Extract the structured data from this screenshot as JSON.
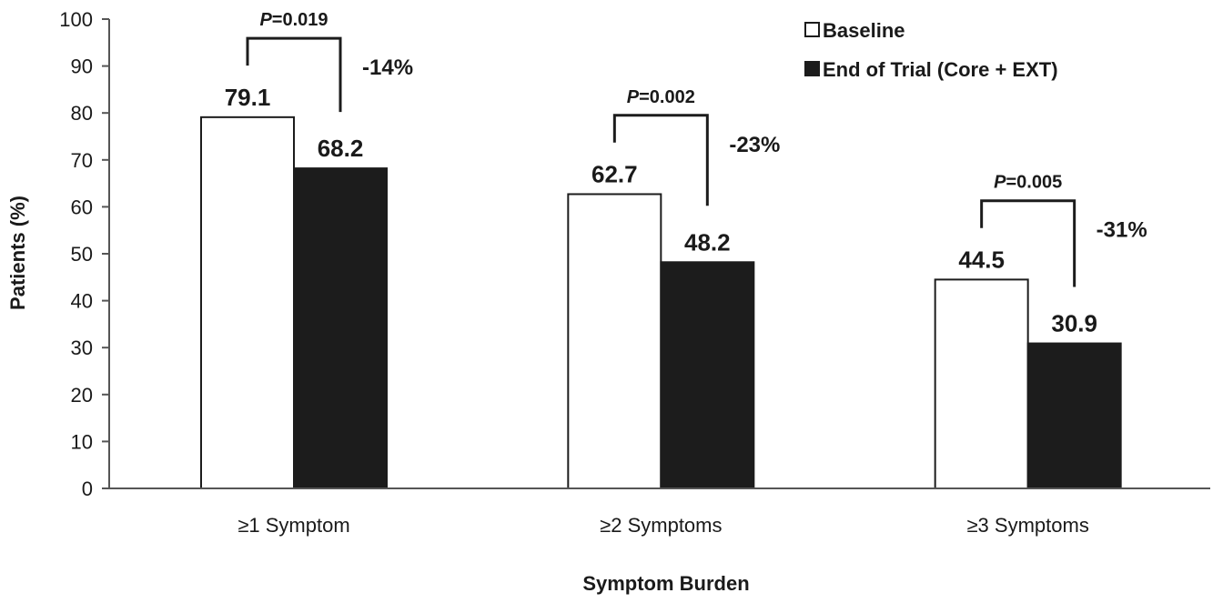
{
  "chart_data": {
    "type": "bar",
    "xlabel": "Symptom Burden",
    "ylabel": "Patients (%)",
    "ylim": [
      0,
      100
    ],
    "yticks": [
      0,
      10,
      20,
      30,
      40,
      50,
      60,
      70,
      80,
      90,
      100
    ],
    "categories": [
      "≥1 Symptom",
      "≥2 Symptoms",
      "≥3 Symptoms"
    ],
    "series": [
      {
        "name": "Baseline",
        "values": [
          79.1,
          62.7,
          44.5
        ],
        "color": "#ffffff"
      },
      {
        "name": "End of Trial (Core + EXT)",
        "values": [
          68.2,
          48.2,
          30.9
        ],
        "color": "#1c1c1c"
      }
    ],
    "data_labels": [
      [
        "79.1",
        "62.7",
        "44.5"
      ],
      [
        "68.2",
        "48.2",
        "30.9"
      ]
    ],
    "annotations": [
      {
        "p_prefix": "P",
        "p_value": "=0.019",
        "change": "-14%"
      },
      {
        "p_prefix": "P",
        "p_value": "=0.002",
        "change": "-23%"
      },
      {
        "p_prefix": "P",
        "p_value": "=0.005",
        "change": "-31%"
      }
    ],
    "grid": false,
    "legend_position": "top-right"
  }
}
